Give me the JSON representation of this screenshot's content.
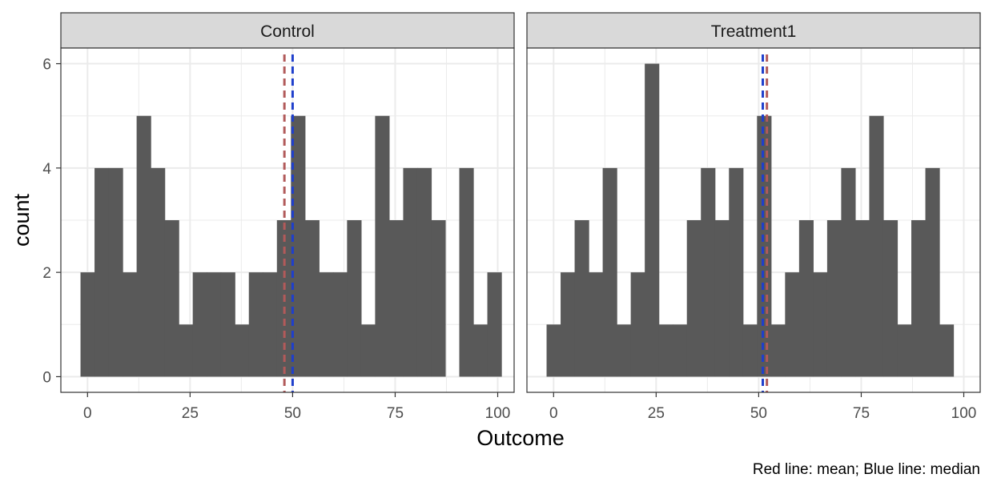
{
  "chart_data": {
    "type": "bar",
    "chart_subtype": "faceted histogram",
    "xlabel": "Outcome",
    "ylabel": "count",
    "caption": "Red line: mean; Blue line: median",
    "xlim": [
      -6.5,
      104
    ],
    "ylim": [
      -0.3,
      6.3
    ],
    "xticks": [
      0,
      25,
      50,
      75,
      100
    ],
    "xtick_labels": [
      "0",
      "25",
      "50",
      "75",
      "100"
    ],
    "yticks": [
      0,
      2,
      4,
      6
    ],
    "ytick_labels": [
      "0",
      "2",
      "4",
      "6"
    ],
    "bin_width": 3.42,
    "bin_start": -1.71,
    "grid": true,
    "theme": "bw",
    "colors": {
      "bar": "#595959",
      "mean_line": "#b25a5a",
      "median_line": "#1f3fcc",
      "strip_fill": "#d9d9d9",
      "grid": "#ebebeb",
      "border": "#333333"
    },
    "facets": [
      {
        "label": "Control",
        "counts": [
          2,
          4,
          4,
          2,
          5,
          4,
          3,
          1,
          2,
          2,
          2,
          1,
          2,
          2,
          3,
          5,
          3,
          2,
          2,
          3,
          1,
          5,
          3,
          4,
          4,
          3,
          0,
          4,
          1,
          2
        ],
        "mean": 48,
        "median": 50
      },
      {
        "label": "Treatment1",
        "counts": [
          1,
          2,
          3,
          2,
          4,
          1,
          2,
          6,
          1,
          1,
          3,
          4,
          3,
          4,
          1,
          5,
          1,
          2,
          3,
          2,
          3,
          4,
          3,
          5,
          3,
          1,
          3,
          4,
          1,
          0
        ],
        "mean": 52,
        "median": 51
      }
    ]
  }
}
